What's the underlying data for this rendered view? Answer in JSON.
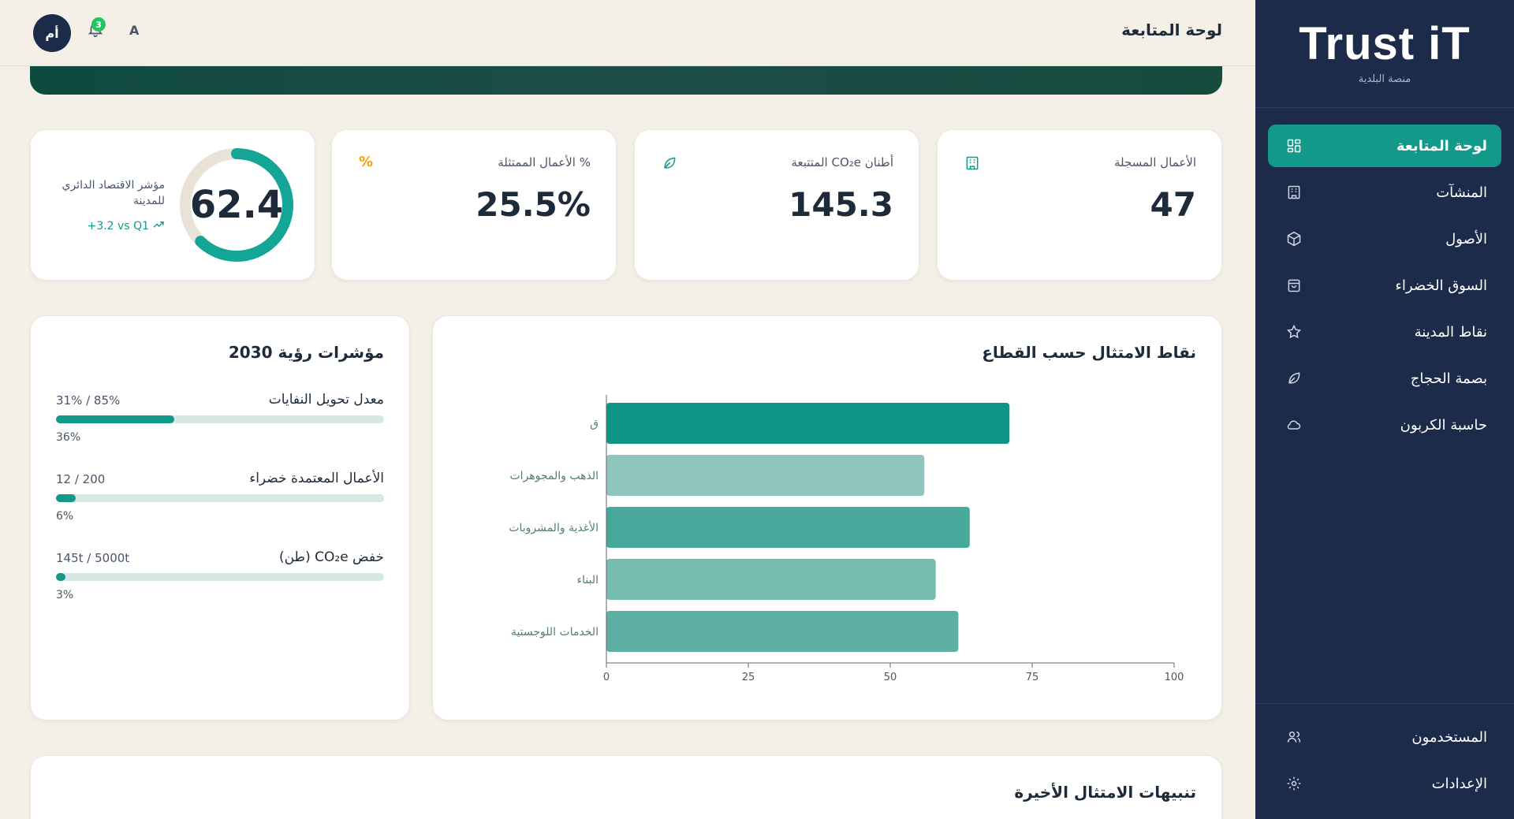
{
  "sidebar": {
    "logo_title": "Trust iT",
    "logo_subtitle": "منصة البلدية",
    "items": [
      {
        "label": "لوحة المتابعة",
        "icon": "dashboard-icon",
        "active": true
      },
      {
        "label": "المنشآت",
        "icon": "building-icon",
        "active": false
      },
      {
        "label": "الأصول",
        "icon": "box-icon",
        "active": false
      },
      {
        "label": "السوق الخضراء",
        "icon": "bag-icon",
        "active": false
      },
      {
        "label": "نقاط المدينة",
        "icon": "star-icon",
        "active": false
      },
      {
        "label": "بصمة الحجاج",
        "icon": "leaf-icon",
        "active": false
      },
      {
        "label": "حاسبة الكربون",
        "icon": "cloud-icon",
        "active": false
      }
    ],
    "bottom_items": [
      {
        "label": "المستخدمون",
        "icon": "users-icon"
      },
      {
        "label": "الإعدادات",
        "icon": "gear-icon"
      }
    ]
  },
  "header": {
    "title": "لوحة المتابعة",
    "avatar_initials": "أم",
    "notification_count": "3",
    "language_toggle": "A"
  },
  "stats": [
    {
      "label": "الأعمال المسجلة",
      "value": "47",
      "icon": "building-icon"
    },
    {
      "label": "أطنان CO₂e المتتبعة",
      "value": "145.3",
      "icon": "leaf-icon"
    },
    {
      "label": "% الأعمال الممتثلة",
      "value": "25.5%",
      "icon": "percent-icon"
    }
  ],
  "circular_index": {
    "label": "مؤشر الاقتصاد الدائري للمدينة",
    "value": "62.4",
    "progress": 0.624,
    "trend": "+3.2 vs Q1",
    "colors": {
      "track": "#e9e2d6",
      "fill": "#13a596"
    }
  },
  "sector_chart": {
    "title": "نقاط الامتثال حسب القطاع",
    "chart_data": {
      "type": "bar",
      "orientation": "horizontal",
      "categories": [
        "ق",
        "الذهب والمجوهرات",
        "الأغذية والمشروبات",
        "البناء",
        "الخدمات اللوجستية"
      ],
      "values": [
        71,
        56,
        64,
        58,
        62
      ],
      "xlim": [
        0,
        100
      ],
      "xticks": [
        "0",
        "25",
        "50",
        "75",
        "100"
      ],
      "colors": [
        "#0f9486",
        "#8ec6bd",
        "#47a89b",
        "#76bcb1",
        "#5eb0a5"
      ]
    }
  },
  "vision": {
    "title": "مؤشرات رؤية 2030",
    "kpis": [
      {
        "name": "معدل تحويل النفايات",
        "ratio": "31% / 85%",
        "percent_label": "36%",
        "fill": 0.36
      },
      {
        "name": "الأعمال المعتمدة خضراء",
        "ratio": "12 / 200",
        "percent_label": "6%",
        "fill": 0.06
      },
      {
        "name": "خفض CO₂e (طن)",
        "ratio": "145t / 5000t",
        "percent_label": "3%",
        "fill": 0.03
      }
    ]
  },
  "alerts": {
    "title": "تنبيهات الامتثال الأخيرة"
  }
}
